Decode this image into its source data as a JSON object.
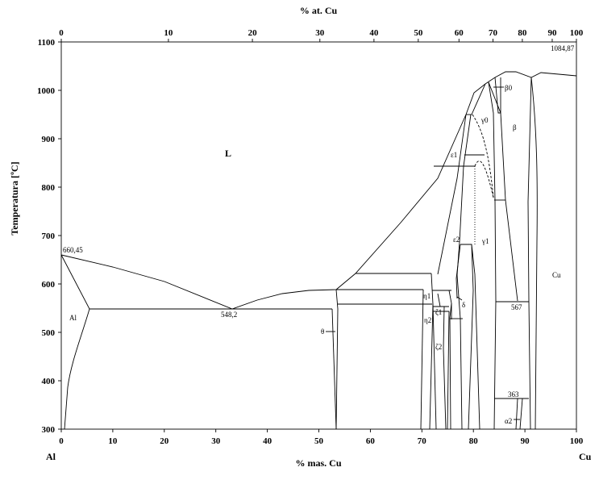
{
  "diagram": {
    "top_axis_title": "% at. Cu",
    "bottom_axis_title": "% mas. Cu",
    "y_axis_title": "Temperatura [ºC]",
    "left_element": "Al",
    "right_element": "Cu",
    "phases": {
      "L": "L",
      "Al": "Al",
      "Cu": "Cu",
      "theta": "θ",
      "eta1": "η1",
      "eta2": "η2",
      "zeta1": "ζ1",
      "zeta2": "ζ2",
      "delta": "δ",
      "eps1": "ε1",
      "eps2": "ε2",
      "gamma0": "γ0",
      "gamma1": "γ1",
      "beta": "β",
      "beta0": "β0",
      "alpha2": "α2"
    },
    "temperatures": {
      "al_melt": "660,45",
      "cu_melt": "1084,87",
      "eutectic": "548,2",
      "t567": "567",
      "t363": "363"
    }
  },
  "chart_data": {
    "type": "phase-diagram",
    "x_bottom_ticks": [
      "0",
      "10",
      "20",
      "30",
      "40",
      "50",
      "60",
      "70",
      "80",
      "90",
      "100"
    ],
    "x_top_ticks": [
      "0",
      "10",
      "20",
      "30",
      "40",
      "50",
      "60",
      "70",
      "80",
      "90",
      "100"
    ],
    "y_ticks": [
      "300",
      "400",
      "500",
      "600",
      "700",
      "800",
      "900",
      "1000",
      "1100"
    ],
    "x_bottom_range": [
      0,
      100
    ],
    "y_range": [
      300,
      1100
    ],
    "top_tick_positions_wt": [
      0,
      20.8,
      37.1,
      50.2,
      60.7,
      69.3,
      77.2,
      83.8,
      89.5,
      95.3,
      100
    ],
    "liquidus_wt": [
      [
        0,
        660.45
      ],
      [
        10,
        635
      ],
      [
        20,
        605
      ],
      [
        33.2,
        548.2
      ],
      [
        38,
        565
      ],
      [
        43,
        580
      ],
      [
        48,
        587
      ],
      [
        53.5,
        590
      ],
      [
        57,
        610
      ],
      [
        66,
        710
      ],
      [
        72,
        780
      ],
      [
        78,
        900
      ],
      [
        80,
        950
      ],
      [
        82,
        1000
      ],
      [
        84,
        1020
      ],
      [
        86,
        1040
      ],
      [
        88,
        1040
      ],
      [
        91,
        1027
      ],
      [
        93,
        1040
      ],
      [
        100,
        1084.87
      ]
    ],
    "isotherms_c": [
      548.2,
      567,
      363
    ]
  }
}
